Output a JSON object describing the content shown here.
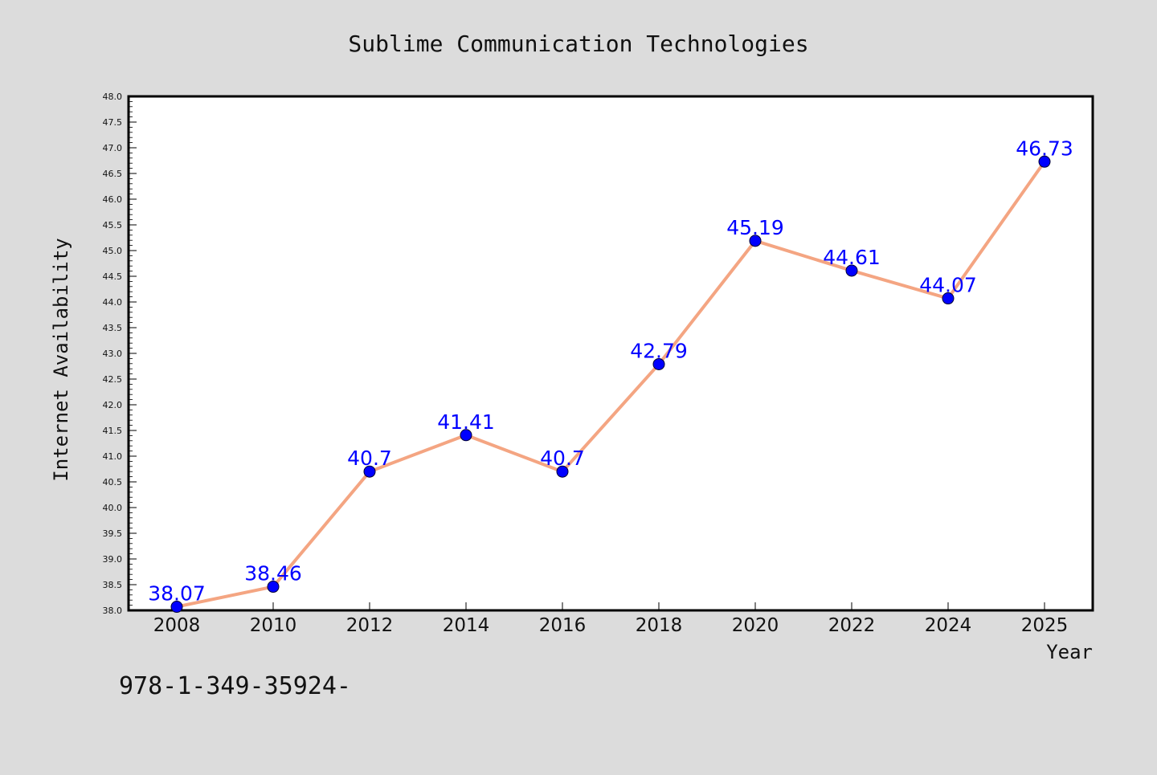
{
  "chart_data": {
    "type": "line",
    "title": "Sublime Communication Technologies",
    "xlabel": "Year",
    "ylabel": "Internet Availability",
    "x": [
      "2008",
      "2010",
      "2012",
      "2014",
      "2016",
      "2018",
      "2020",
      "2022",
      "2024",
      "2025"
    ],
    "series": [
      {
        "values": [
          38.07,
          38.46,
          40.7,
          41.41,
          40.7,
          42.79,
          45.19,
          44.61,
          44.07,
          46.73
        ],
        "labels": [
          "38.07",
          "38.46",
          "40.7",
          "41.41",
          "40.7",
          "42.79",
          "45.19",
          "44.61",
          "44.07",
          "46.73"
        ]
      }
    ],
    "ylim": [
      38.0,
      48.0
    ],
    "yticks": [
      "38.0",
      "38.5",
      "39.0",
      "39.5",
      "40.0",
      "40.5",
      "41.0",
      "41.5",
      "42.0",
      "42.5",
      "43.0",
      "43.5",
      "44.0",
      "44.5",
      "45.0",
      "45.5",
      "46.0",
      "46.5",
      "47.0",
      "47.5",
      "48.0"
    ],
    "grid": false,
    "legend": "none",
    "colors": {
      "line": "#f4a582",
      "marker": "#0000ff",
      "labels": "#0000ff",
      "plot_background": "#ffffff",
      "figure_background": "#dcdcdc"
    }
  },
  "footer_text": "978-1-349-35924-"
}
